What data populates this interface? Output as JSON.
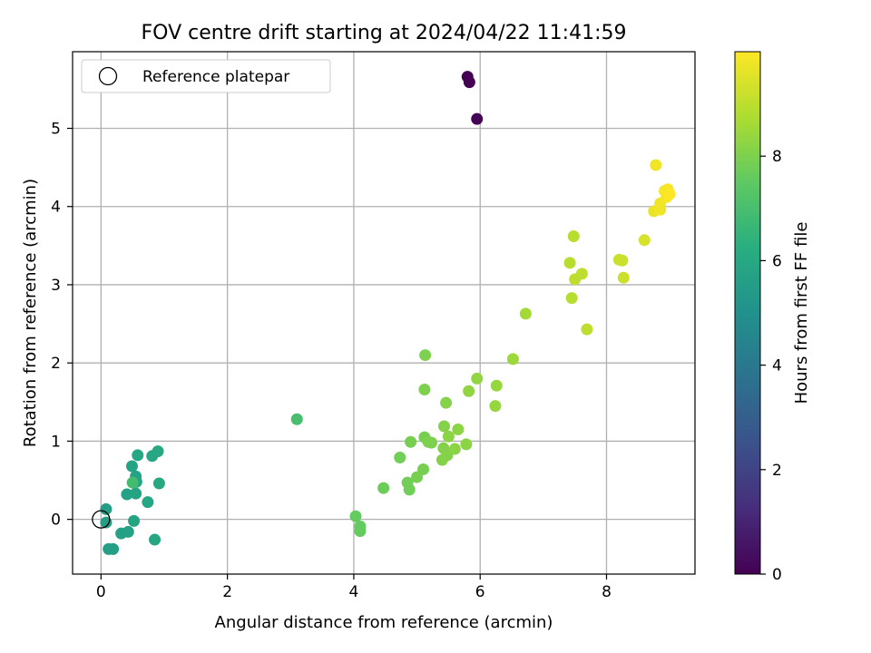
{
  "chart_data": {
    "type": "scatter",
    "title": "FOV centre drift starting at 2024/04/22 11:41:59",
    "xlabel": "Angular distance from reference (arcmin)",
    "ylabel": "Rotation from reference (arcmin)",
    "xlim": [
      -0.45,
      9.4
    ],
    "ylim": [
      -0.7,
      5.98
    ],
    "x_ticks": [
      0,
      2,
      4,
      6,
      8
    ],
    "y_ticks": [
      0,
      1,
      2,
      3,
      4,
      5
    ],
    "grid": true,
    "legend": {
      "placement": "top-left",
      "entries": [
        "Reference platepar"
      ]
    },
    "reference_point": {
      "x": 0,
      "y": 0
    },
    "colorbar": {
      "label": "Hours from first FF file",
      "colormap": "viridis",
      "range": [
        0,
        10
      ],
      "ticks": [
        0,
        2,
        4,
        6,
        8
      ]
    },
    "points": [
      {
        "x": 5.8,
        "y": 5.66,
        "h": 0.0
      },
      {
        "x": 5.83,
        "y": 5.59,
        "h": 0.0
      },
      {
        "x": 5.95,
        "y": 5.12,
        "h": 0.1
      },
      {
        "x": 0.08,
        "y": 0.13,
        "h": 5.6
      },
      {
        "x": 0.08,
        "y": -0.04,
        "h": 5.6
      },
      {
        "x": 0.12,
        "y": -0.38,
        "h": 5.6
      },
      {
        "x": 0.19,
        "y": -0.38,
        "h": 5.6
      },
      {
        "x": 0.32,
        "y": -0.18,
        "h": 5.7
      },
      {
        "x": 0.43,
        "y": -0.16,
        "h": 5.7
      },
      {
        "x": 0.41,
        "y": 0.32,
        "h": 5.7
      },
      {
        "x": 0.52,
        "y": -0.02,
        "h": 5.8
      },
      {
        "x": 0.55,
        "y": 0.33,
        "h": 5.8
      },
      {
        "x": 0.49,
        "y": 0.68,
        "h": 5.8
      },
      {
        "x": 0.55,
        "y": 0.55,
        "h": 5.8
      },
      {
        "x": 0.56,
        "y": 0.48,
        "h": 5.8
      },
      {
        "x": 0.5,
        "y": 0.47,
        "h": 6.9
      },
      {
        "x": 0.58,
        "y": 0.82,
        "h": 5.9
      },
      {
        "x": 0.74,
        "y": 0.22,
        "h": 5.9
      },
      {
        "x": 0.81,
        "y": 0.81,
        "h": 5.9
      },
      {
        "x": 0.85,
        "y": -0.26,
        "h": 5.9
      },
      {
        "x": 0.9,
        "y": 0.87,
        "h": 6.0
      },
      {
        "x": 0.92,
        "y": 0.46,
        "h": 6.0
      },
      {
        "x": 3.1,
        "y": 1.28,
        "h": 7.0
      },
      {
        "x": 4.03,
        "y": 0.04,
        "h": 7.6
      },
      {
        "x": 4.1,
        "y": -0.09,
        "h": 7.6
      },
      {
        "x": 4.1,
        "y": -0.15,
        "h": 7.6
      },
      {
        "x": 4.47,
        "y": 0.4,
        "h": 7.7
      },
      {
        "x": 4.73,
        "y": 0.79,
        "h": 7.8
      },
      {
        "x": 4.85,
        "y": 0.47,
        "h": 7.8
      },
      {
        "x": 4.88,
        "y": 0.38,
        "h": 7.8
      },
      {
        "x": 4.9,
        "y": 0.99,
        "h": 7.9
      },
      {
        "x": 5.0,
        "y": 0.54,
        "h": 7.9
      },
      {
        "x": 5.1,
        "y": 0.64,
        "h": 7.9
      },
      {
        "x": 5.12,
        "y": 1.05,
        "h": 7.9
      },
      {
        "x": 5.12,
        "y": 1.66,
        "h": 8.0
      },
      {
        "x": 5.13,
        "y": 2.1,
        "h": 8.0
      },
      {
        "x": 5.18,
        "y": 0.99,
        "h": 8.0
      },
      {
        "x": 5.23,
        "y": 0.98,
        "h": 8.0
      },
      {
        "x": 5.4,
        "y": 0.76,
        "h": 8.1
      },
      {
        "x": 5.42,
        "y": 0.91,
        "h": 8.1
      },
      {
        "x": 5.43,
        "y": 1.19,
        "h": 8.1
      },
      {
        "x": 5.46,
        "y": 1.49,
        "h": 8.1
      },
      {
        "x": 5.48,
        "y": 0.82,
        "h": 8.1
      },
      {
        "x": 5.5,
        "y": 1.06,
        "h": 8.2
      },
      {
        "x": 5.6,
        "y": 0.9,
        "h": 8.2
      },
      {
        "x": 5.65,
        "y": 1.15,
        "h": 8.2
      },
      {
        "x": 5.78,
        "y": 0.96,
        "h": 8.2
      },
      {
        "x": 5.82,
        "y": 1.64,
        "h": 8.3
      },
      {
        "x": 5.95,
        "y": 1.8,
        "h": 8.3
      },
      {
        "x": 6.24,
        "y": 1.45,
        "h": 8.4
      },
      {
        "x": 6.26,
        "y": 1.71,
        "h": 8.4
      },
      {
        "x": 6.52,
        "y": 2.05,
        "h": 8.5
      },
      {
        "x": 6.72,
        "y": 2.63,
        "h": 8.6
      },
      {
        "x": 7.42,
        "y": 3.28,
        "h": 8.9
      },
      {
        "x": 7.45,
        "y": 2.83,
        "h": 8.9
      },
      {
        "x": 7.48,
        "y": 3.62,
        "h": 8.9
      },
      {
        "x": 7.5,
        "y": 3.07,
        "h": 9.0
      },
      {
        "x": 7.61,
        "y": 3.14,
        "h": 9.0
      },
      {
        "x": 7.69,
        "y": 2.43,
        "h": 9.0
      },
      {
        "x": 8.2,
        "y": 3.32,
        "h": 9.2
      },
      {
        "x": 8.25,
        "y": 3.31,
        "h": 9.2
      },
      {
        "x": 8.27,
        "y": 3.09,
        "h": 9.2
      },
      {
        "x": 8.6,
        "y": 3.57,
        "h": 9.4
      },
      {
        "x": 8.75,
        "y": 3.94,
        "h": 9.7
      },
      {
        "x": 8.78,
        "y": 4.53,
        "h": 9.8
      },
      {
        "x": 8.85,
        "y": 3.96,
        "h": 9.8
      },
      {
        "x": 8.85,
        "y": 4.04,
        "h": 9.8
      },
      {
        "x": 8.92,
        "y": 4.2,
        "h": 9.9
      },
      {
        "x": 8.95,
        "y": 4.12,
        "h": 9.9
      },
      {
        "x": 8.97,
        "y": 4.22,
        "h": 9.9
      },
      {
        "x": 9.0,
        "y": 4.16,
        "h": 10.0
      }
    ]
  }
}
